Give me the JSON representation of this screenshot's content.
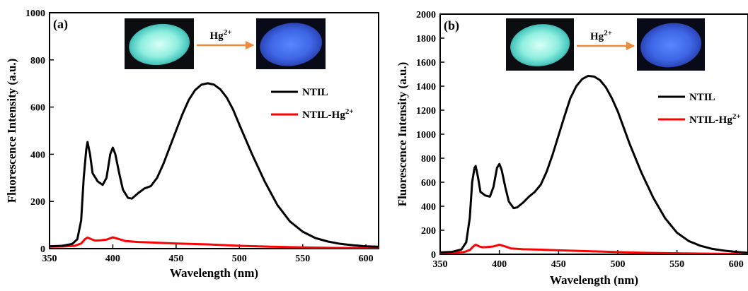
{
  "chart_data": [
    {
      "type": "line",
      "panel_label": "(a)",
      "xlabel": "Wavelength (nm)",
      "ylabel": "Fluorescence Intensity (a.u.)",
      "xlim": [
        350,
        610
      ],
      "ylim": [
        0,
        1000
      ],
      "x_ticks": [
        350,
        400,
        450,
        500,
        550,
        600
      ],
      "y_ticks": [
        0,
        200,
        400,
        600,
        800,
        1000
      ],
      "grid": false,
      "legend_position": "right",
      "inset": {
        "arrow_label": "Hg",
        "arrow_superscript": "2+",
        "left_photo": "cyan-glowing-disk",
        "right_photo": "blue-glowing-disk"
      },
      "series": [
        {
          "name": "NTIL",
          "legend_superscript": "",
          "color": "#000000",
          "x": [
            350,
            360,
            368,
            372,
            375,
            377,
            379,
            380,
            382,
            384,
            388,
            392,
            395,
            398,
            400,
            402,
            405,
            408,
            412,
            415,
            420,
            425,
            430,
            435,
            440,
            445,
            450,
            455,
            460,
            465,
            470,
            475,
            480,
            485,
            490,
            495,
            500,
            510,
            520,
            530,
            540,
            550,
            560,
            570,
            580,
            590,
            600,
            610
          ],
          "values": [
            10,
            12,
            20,
            40,
            120,
            300,
            420,
            452,
            400,
            320,
            285,
            270,
            300,
            400,
            428,
            400,
            320,
            250,
            215,
            212,
            235,
            255,
            265,
            300,
            360,
            430,
            500,
            570,
            630,
            672,
            695,
            701,
            695,
            675,
            640,
            590,
            525,
            400,
            285,
            185,
            115,
            72,
            45,
            30,
            20,
            14,
            10,
            8
          ]
        },
        {
          "name": "NTIL-Hg",
          "legend_superscript": "2+",
          "color": "#ff0000",
          "x": [
            350,
            360,
            370,
            375,
            378,
            380,
            383,
            386,
            390,
            395,
            400,
            405,
            410,
            420,
            430,
            450,
            475,
            500,
            525,
            550,
            575,
            610
          ],
          "values": [
            8,
            9,
            12,
            22,
            40,
            47,
            40,
            34,
            35,
            38,
            48,
            40,
            32,
            28,
            26,
            22,
            18,
            12,
            8,
            5,
            3,
            2
          ]
        }
      ]
    },
    {
      "type": "line",
      "panel_label": "(b)",
      "xlabel": "Wavelength (nm)",
      "ylabel": "Fluorescence Intensity (a.u.)",
      "xlim": [
        350,
        610
      ],
      "ylim": [
        0,
        2000
      ],
      "x_ticks": [
        350,
        400,
        450,
        500,
        550,
        600
      ],
      "y_ticks": [
        0,
        200,
        400,
        600,
        800,
        1000,
        1200,
        1400,
        1600,
        1800,
        2000
      ],
      "grid": false,
      "legend_position": "right",
      "inset": {
        "arrow_label": "Hg",
        "arrow_superscript": "2+",
        "left_photo": "cyan-glowing-disk",
        "right_photo": "blue-glowing-disk"
      },
      "series": [
        {
          "name": "NTIL",
          "legend_superscript": "",
          "color": "#000000",
          "x": [
            350,
            360,
            368,
            372,
            375,
            377,
            379,
            380,
            382,
            384,
            388,
            392,
            395,
            398,
            400,
            402,
            405,
            408,
            412,
            415,
            420,
            425,
            430,
            435,
            440,
            445,
            450,
            455,
            460,
            465,
            470,
            475,
            480,
            485,
            490,
            495,
            500,
            510,
            520,
            530,
            540,
            550,
            560,
            570,
            580,
            590,
            600,
            610
          ],
          "values": [
            15,
            20,
            40,
            100,
            300,
            600,
            720,
            735,
            640,
            520,
            490,
            480,
            560,
            720,
            752,
            700,
            560,
            440,
            385,
            390,
            430,
            480,
            520,
            580,
            690,
            830,
            990,
            1150,
            1300,
            1400,
            1460,
            1485,
            1480,
            1450,
            1390,
            1300,
            1190,
            920,
            680,
            470,
            300,
            180,
            110,
            70,
            45,
            30,
            20,
            12
          ]
        },
        {
          "name": "NTIL-Hg",
          "legend_superscript": "2+",
          "color": "#ff0000",
          "x": [
            350,
            360,
            370,
            375,
            378,
            380,
            383,
            386,
            390,
            395,
            400,
            405,
            410,
            420,
            430,
            450,
            475,
            500,
            525,
            550,
            575,
            610
          ],
          "values": [
            10,
            12,
            18,
            35,
            65,
            80,
            65,
            58,
            60,
            65,
            80,
            65,
            48,
            42,
            40,
            33,
            26,
            18,
            12,
            8,
            5,
            3
          ]
        }
      ]
    }
  ]
}
